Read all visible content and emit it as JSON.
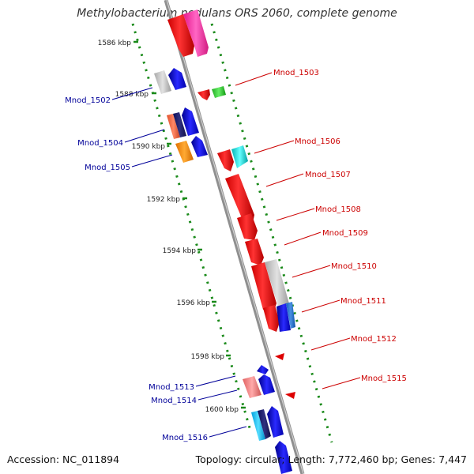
{
  "title": "Methylobacterium nodulans ORS 2060, complete genome",
  "footer": {
    "accession": "Accession: NC_011894",
    "topology": "Topology: circular; Length: 7,772,460 bp; Genes: 7,447"
  },
  "colors": {
    "forward_label": "#cc0000",
    "reverse_label": "#000099",
    "backbone": "#999999",
    "tick": "#1a8a1a"
  },
  "scale": {
    "ticks": [
      "1586 kbp",
      "1588 kbp",
      "1590 kbp",
      "1592 kbp",
      "1594 kbp",
      "1596 kbp",
      "1598 kbp",
      "1600 kbp"
    ]
  },
  "gene_labels": [
    {
      "name": "Mnod_1502",
      "strand": "reverse"
    },
    {
      "name": "Mnod_1503",
      "strand": "forward"
    },
    {
      "name": "Mnod_1504",
      "strand": "reverse"
    },
    {
      "name": "Mnod_1505",
      "strand": "reverse"
    },
    {
      "name": "Mnod_1506",
      "strand": "forward"
    },
    {
      "name": "Mnod_1507",
      "strand": "forward"
    },
    {
      "name": "Mnod_1508",
      "strand": "forward"
    },
    {
      "name": "Mnod_1509",
      "strand": "forward"
    },
    {
      "name": "Mnod_1510",
      "strand": "forward"
    },
    {
      "name": "Mnod_1511",
      "strand": "forward"
    },
    {
      "name": "Mnod_1512",
      "strand": "forward"
    },
    {
      "name": "Mnod_1515",
      "strand": "forward"
    },
    {
      "name": "Mnod_1513",
      "strand": "reverse"
    },
    {
      "name": "Mnod_1514",
      "strand": "reverse"
    },
    {
      "name": "Mnod_1516",
      "strand": "reverse"
    }
  ]
}
